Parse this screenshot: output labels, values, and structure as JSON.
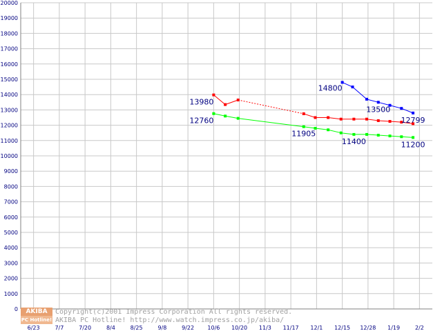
{
  "chart_data": {
    "type": "line",
    "title": "",
    "xlabel": "",
    "ylabel": "",
    "ylim": [
      0,
      20000
    ],
    "ytick_step": 1000,
    "grid": true,
    "categories": [
      "6/23",
      "7/7",
      "7/20",
      "8/4",
      "8/25",
      "9/8",
      "9/22",
      "10/6",
      "10/20",
      "11/3",
      "11/17",
      "12/1",
      "12/15",
      "12/28",
      "1/19",
      "2/2"
    ],
    "series": [
      {
        "color": "#0000ff",
        "points": [
          {
            "x": 12.0,
            "y": 14800
          },
          {
            "x": 12.4,
            "y": 14500
          },
          {
            "x": 12.95,
            "y": 13700
          },
          {
            "x": 13.4,
            "y": 13500
          },
          {
            "x": 13.85,
            "y": 13300
          },
          {
            "x": 14.3,
            "y": 13100
          },
          {
            "x": 14.75,
            "y": 12799
          }
        ],
        "dashed_after": -1
      },
      {
        "color": "#ff0000",
        "points": [
          {
            "x": 7.0,
            "y": 13980
          },
          {
            "x": 7.45,
            "y": 13350
          },
          {
            "x": 7.95,
            "y": 13650
          },
          {
            "x": 10.5,
            "y": 12750
          },
          {
            "x": 10.95,
            "y": 12500
          },
          {
            "x": 11.45,
            "y": 12500
          },
          {
            "x": 11.95,
            "y": 12400
          },
          {
            "x": 12.45,
            "y": 12400
          },
          {
            "x": 12.95,
            "y": 12400
          },
          {
            "x": 13.4,
            "y": 12300
          },
          {
            "x": 13.85,
            "y": 12250
          },
          {
            "x": 14.3,
            "y": 12200
          },
          {
            "x": 14.75,
            "y": 12100
          }
        ],
        "dashed_after": 2
      },
      {
        "color": "#00ff00",
        "points": [
          {
            "x": 7.0,
            "y": 12760
          },
          {
            "x": 7.45,
            "y": 12600
          },
          {
            "x": 7.95,
            "y": 12450
          },
          {
            "x": 10.5,
            "y": 11905
          },
          {
            "x": 10.95,
            "y": 11800
          },
          {
            "x": 11.45,
            "y": 11700
          },
          {
            "x": 11.95,
            "y": 11500
          },
          {
            "x": 12.45,
            "y": 11400
          },
          {
            "x": 12.95,
            "y": 11400
          },
          {
            "x": 13.4,
            "y": 11350
          },
          {
            "x": 13.85,
            "y": 11300
          },
          {
            "x": 14.3,
            "y": 11250
          },
          {
            "x": 14.75,
            "y": 11200
          }
        ],
        "dashed_after": -1
      }
    ],
    "annotations": [
      {
        "text": "13980",
        "x": 7.0,
        "y": 13980,
        "anchor": "end",
        "dy": 14
      },
      {
        "text": "12760",
        "x": 7.0,
        "y": 12760,
        "anchor": "end",
        "dy": 14
      },
      {
        "text": "14800",
        "x": 12.0,
        "y": 14800,
        "anchor": "end",
        "dy": 12
      },
      {
        "text": "13500",
        "x": 13.4,
        "y": 13500,
        "anchor": "middle",
        "dy": 14
      },
      {
        "text": "12799",
        "x": 14.75,
        "y": 12799,
        "anchor": "middle",
        "dy": 14
      },
      {
        "text": "11905",
        "x": 10.5,
        "y": 11905,
        "anchor": "middle",
        "dy": 14
      },
      {
        "text": "11400",
        "x": 12.45,
        "y": 11400,
        "anchor": "middle",
        "dy": 14
      },
      {
        "text": "11200",
        "x": 14.75,
        "y": 11200,
        "anchor": "middle",
        "dy": 14
      }
    ]
  },
  "watermark": {
    "logo_top": "AKIBA",
    "logo_bottom": "PC Hotline!",
    "line1": "Copyright(c)2001 Impress Corporation All rights reserved.",
    "line2": "AKIBA PC Hotline!  http://www.watch.impress.co.jp/akiba/"
  }
}
